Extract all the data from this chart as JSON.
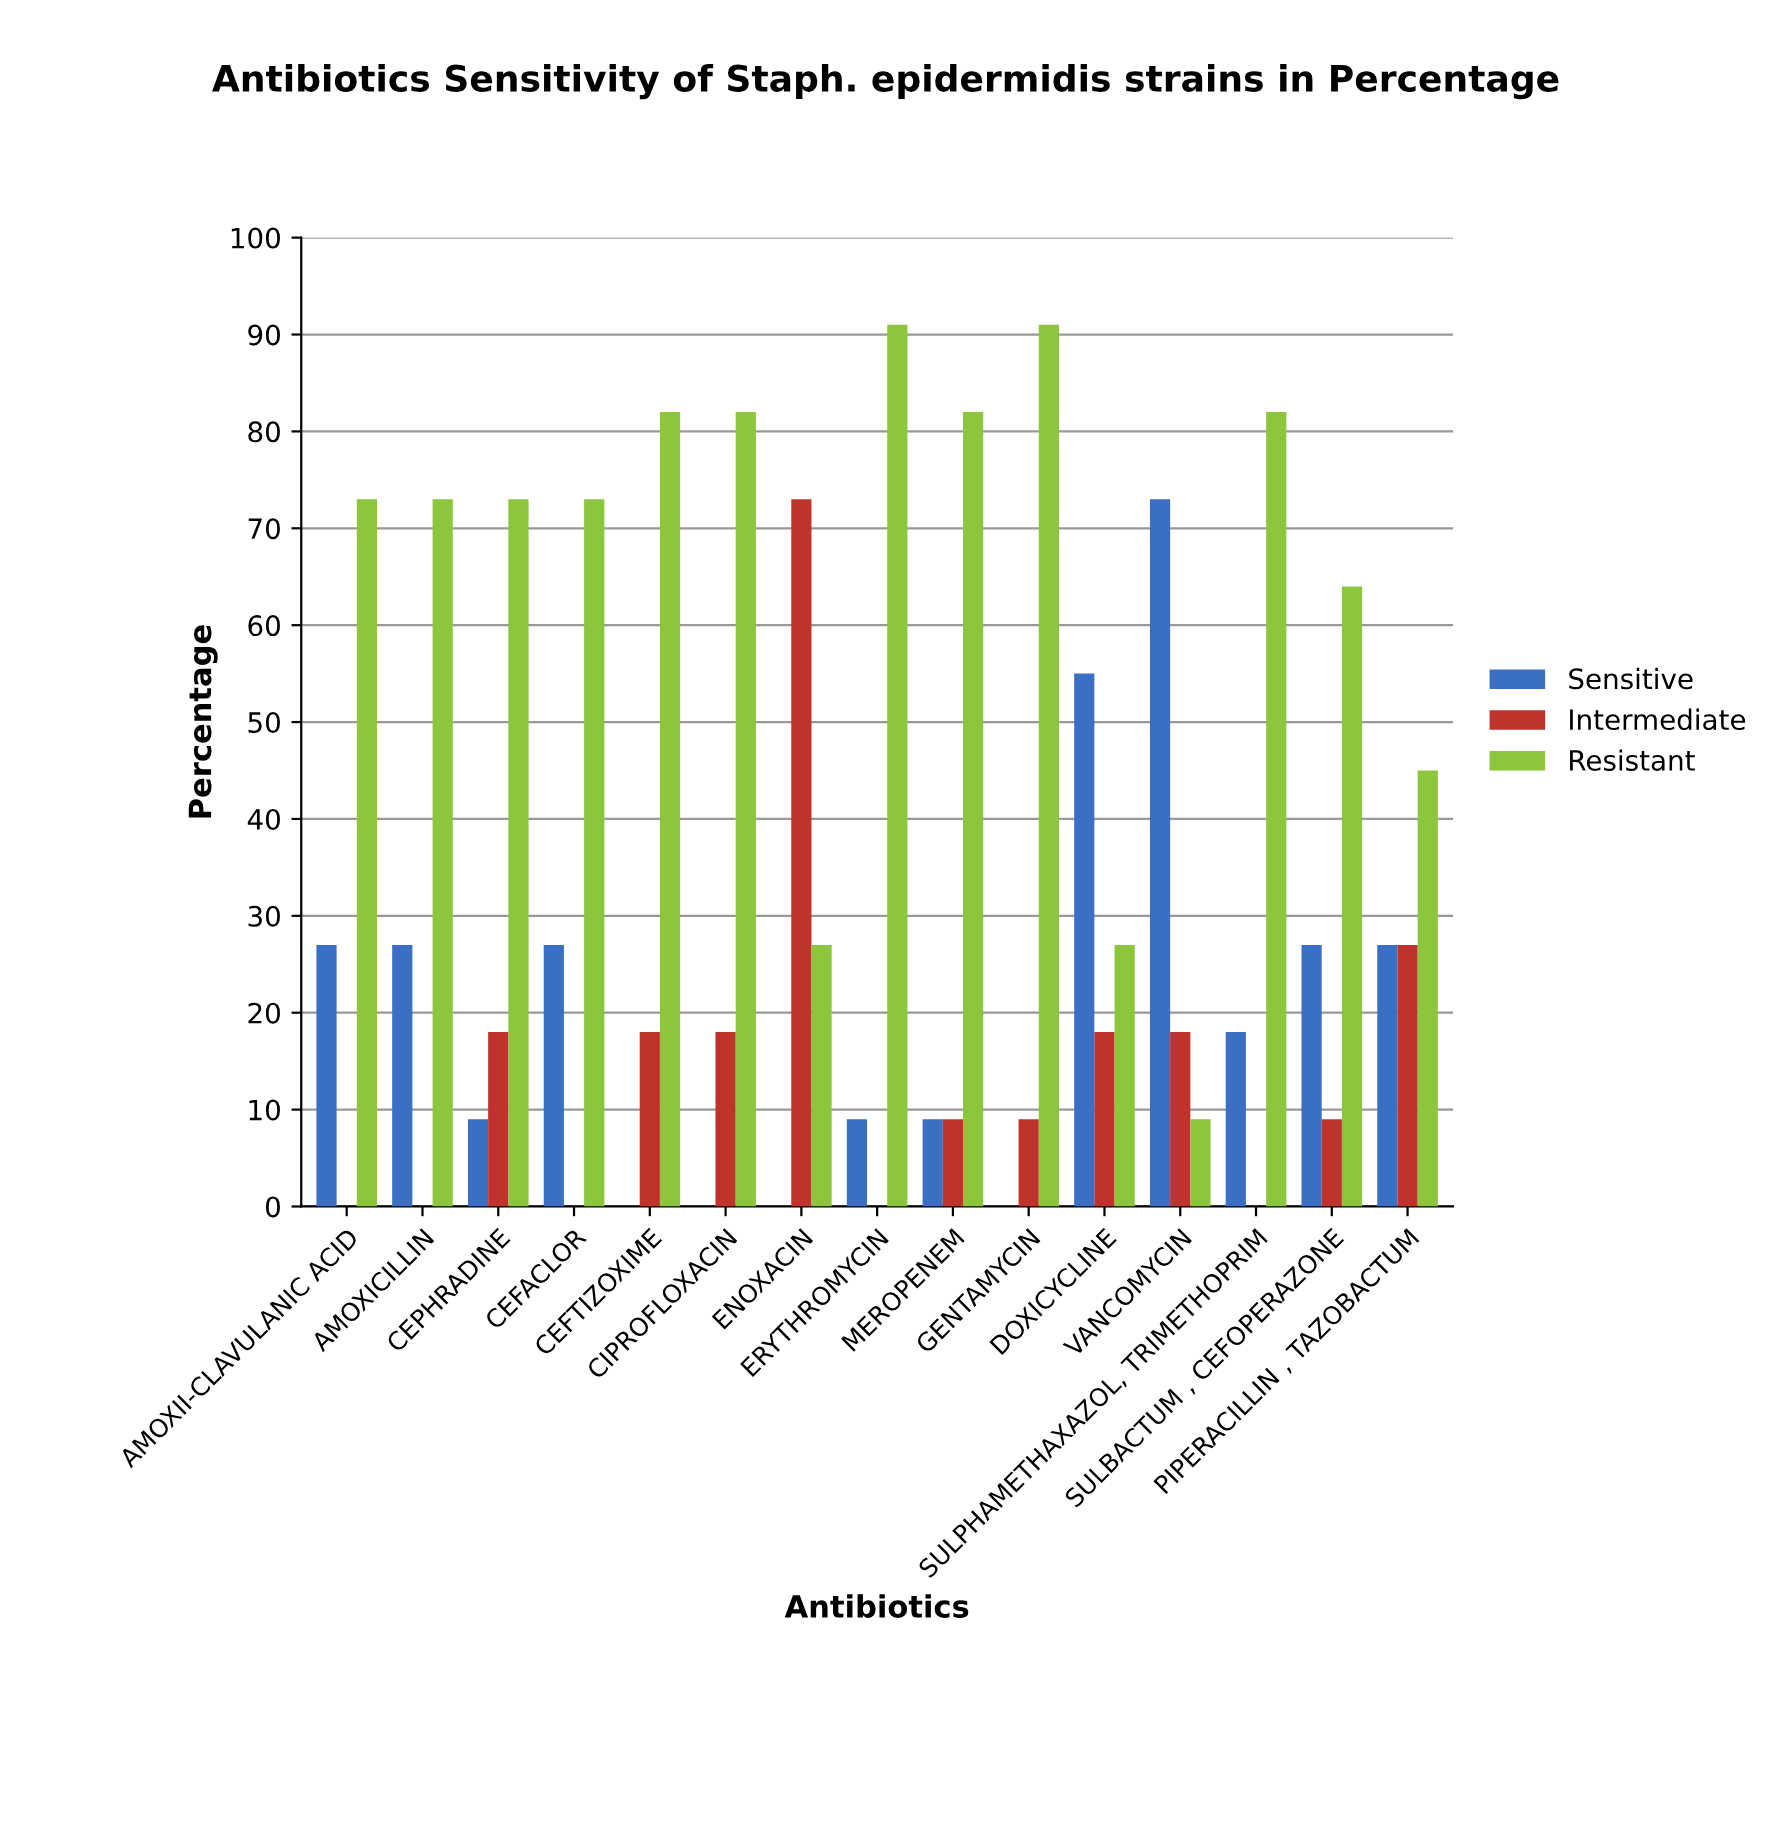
{
  "chart_data": {
    "type": "bar",
    "title": "Antibiotics Sensitivity of Staph. epidermidis strains in Percentage",
    "xlabel": "Antibiotics",
    "ylabel": "Percentage",
    "categories": [
      "AMOXII-CLAVULANIC ACID",
      "AMOXICILLIN",
      "CEPHRADINE",
      "CEFACLOR",
      "CEFTIZOXIME",
      "CIPROFLOXACIN",
      "ENOXACIN",
      "ERYTHROMYCIN",
      "MEROPENEM",
      "GENTAMYCIN",
      "DOXICYCLINE",
      "VANCOMYCIN",
      "SULPHAMETHAXAZOL, TRIMETHOPRIM",
      "SULBACTUM , CEFOPERAZONE",
      "PIPERACILLIN , TAZOBACTUM"
    ],
    "series": [
      {
        "name": "Sensitive",
        "color": "#3a6fc4",
        "values": [
          27,
          27,
          9,
          27,
          0,
          0,
          0,
          9,
          9,
          0,
          55,
          73,
          18,
          27,
          27
        ]
      },
      {
        "name": "Intermediate",
        "color": "#c0322c",
        "values": [
          0,
          0,
          18,
          0,
          18,
          18,
          73,
          0,
          9,
          9,
          18,
          18,
          0,
          9,
          27
        ]
      },
      {
        "name": "Resistant",
        "color": "#8cc63c",
        "values": [
          73,
          73,
          73,
          73,
          82,
          82,
          27,
          91,
          82,
          91,
          27,
          9,
          82,
          64,
          45
        ]
      }
    ],
    "ylim": [
      0,
      100
    ],
    "yticks": [
      0,
      10,
      20,
      30,
      40,
      50,
      60,
      70,
      80,
      90,
      100
    ],
    "grid": "y",
    "legend": "right"
  }
}
